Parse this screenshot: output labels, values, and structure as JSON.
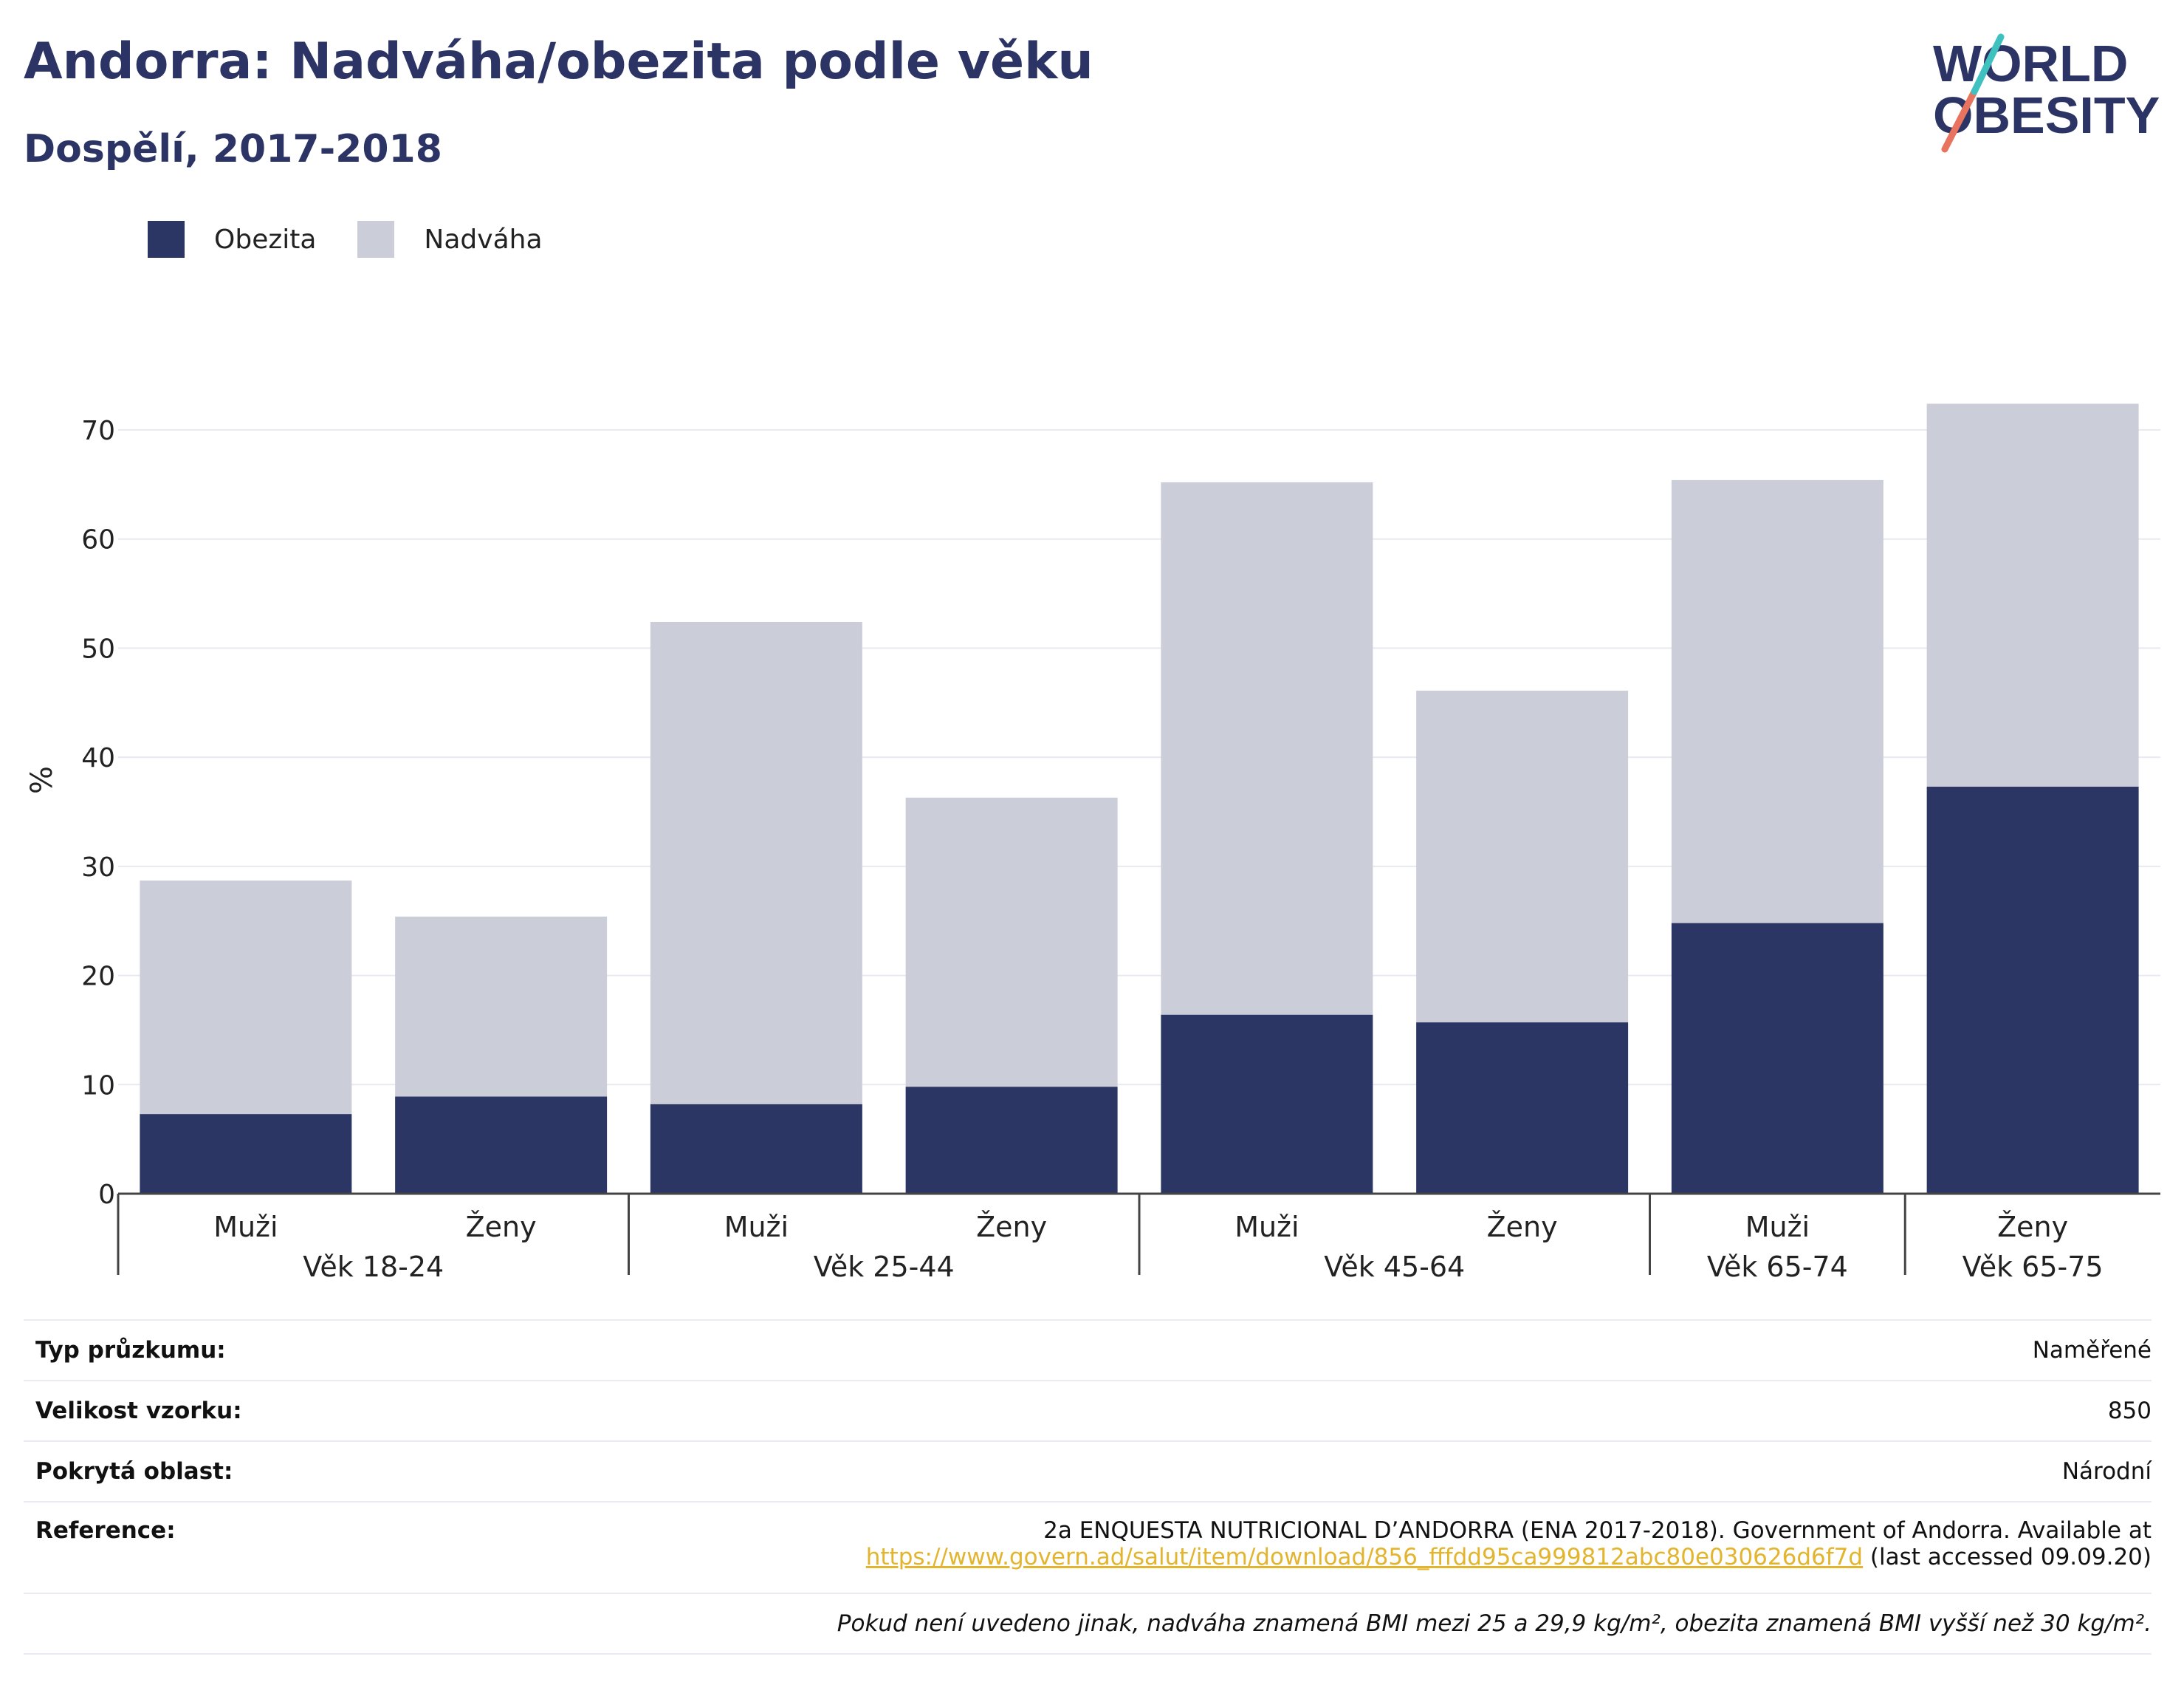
{
  "header": {
    "title": "Andorra: Nadváha/obezita podle věku",
    "subtitle": "Dospělí, 2017-2018",
    "logo_line1": "WORLD",
    "logo_line2": "OBESITY"
  },
  "colors": {
    "obesity": "#2b3664",
    "overweight": "#cbcdd9",
    "grid": "#e8eaf0",
    "axis": "#444444",
    "link": "#e3b42d"
  },
  "chart_data": {
    "type": "bar",
    "stacked": true,
    "ylabel": "%",
    "ylim": [
      0,
      70
    ],
    "yticks": [
      0,
      10,
      20,
      30,
      40,
      50,
      60,
      70
    ],
    "grid": true,
    "legend_position": "top-left",
    "groups": [
      {
        "label": "Věk 18-24",
        "bars": [
          "Muži",
          "Ženy"
        ]
      },
      {
        "label": "Věk 25-44",
        "bars": [
          "Muži",
          "Ženy"
        ]
      },
      {
        "label": "Věk 45-64",
        "bars": [
          "Muži",
          "Ženy"
        ]
      },
      {
        "label": "Věk 65-74",
        "bars": [
          "Muži"
        ]
      },
      {
        "label": "Věk 65-75",
        "bars": [
          "Ženy"
        ]
      }
    ],
    "categories": [
      "Muži",
      "Ženy",
      "Muži",
      "Ženy",
      "Muži",
      "Ženy",
      "Muži",
      "Ženy"
    ],
    "series": [
      {
        "name": "Obezita",
        "values": [
          7.3,
          8.9,
          8.2,
          9.8,
          16.4,
          15.7,
          24.8,
          37.3
        ]
      },
      {
        "name": "Nadváha",
        "values": [
          21.4,
          16.5,
          44.2,
          26.5,
          48.8,
          30.4,
          40.6,
          35.1
        ]
      }
    ]
  },
  "info": {
    "survey_type_label": "Typ průzkumu:",
    "survey_type_value": "Naměřené",
    "sample_size_label": "Velikost vzorku:",
    "sample_size_value": "850",
    "area_label": "Pokrytá oblast:",
    "area_value": "Národní",
    "reference_label": "Reference:",
    "reference_line1": "2a ENQUESTA NUTRICIONAL D’ANDORRA (ENA 2017-2018). Government of Andorra. Available at",
    "reference_link": "https://www.govern.ad/salut/item/download/856_fffdd95ca999812abc80e030626d6f7d",
    "reference_suffix": " (last accessed 09.09.20)",
    "footnote": "Pokud není uvedeno jinak, nadváha znamená BMI mezi 25 a 29,9 kg/m², obezita znamená BMI vyšší než 30 kg/m²."
  }
}
